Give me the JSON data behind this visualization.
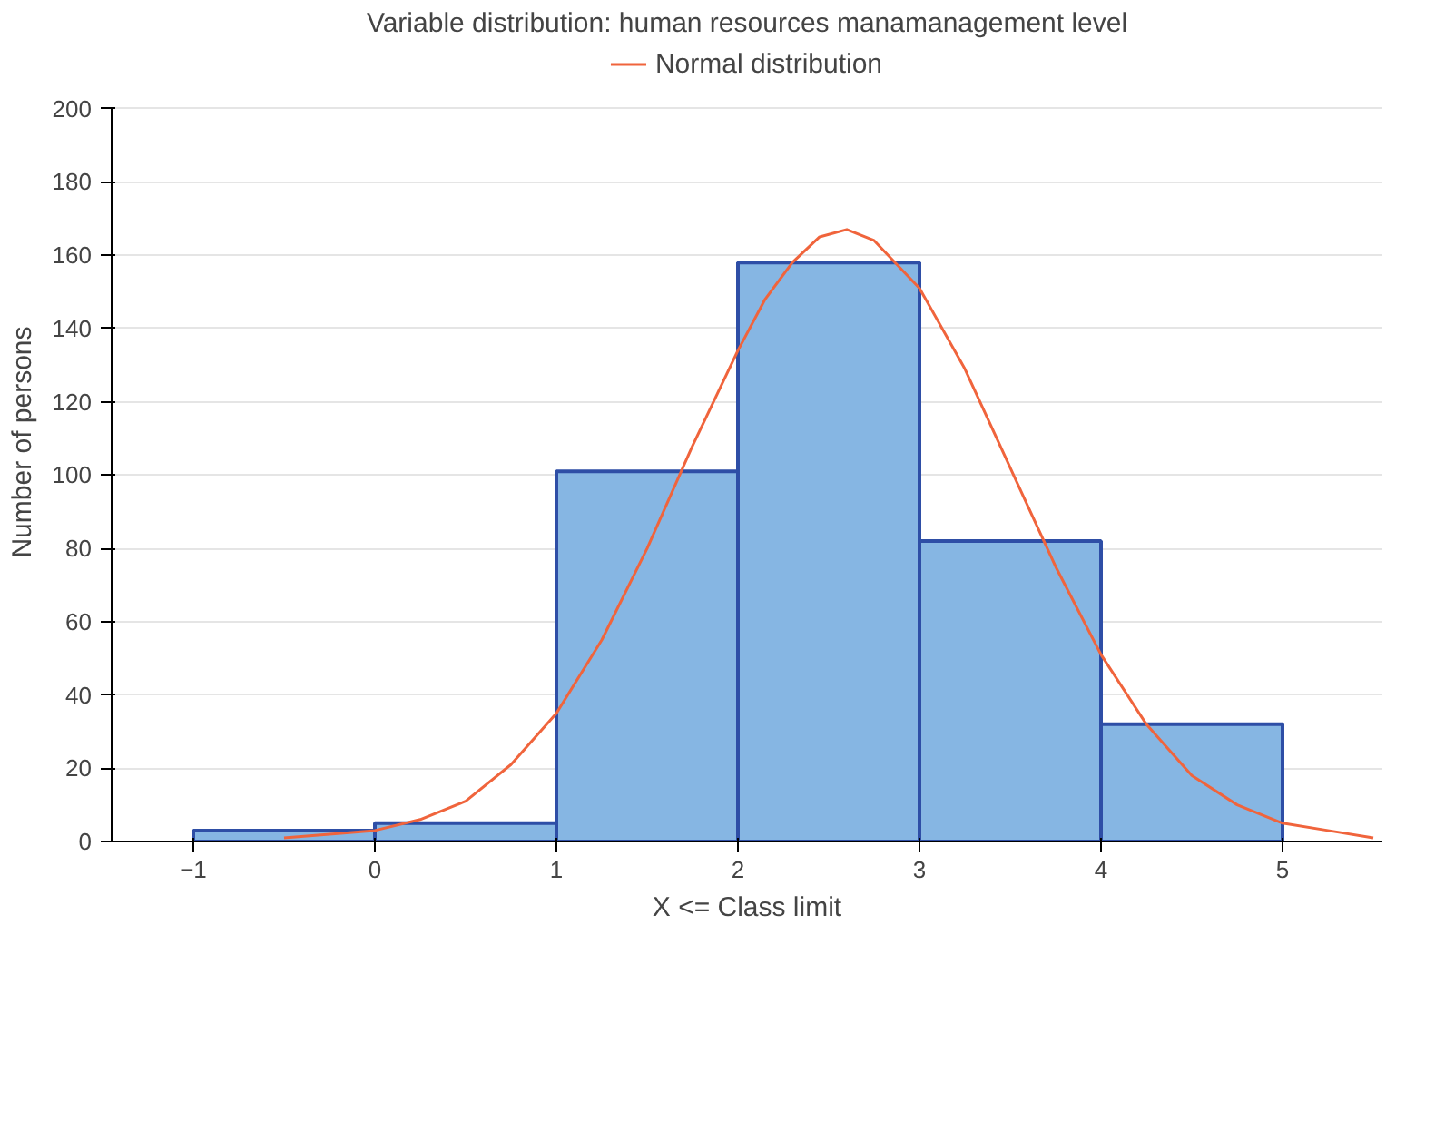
{
  "chart_data": {
    "type": "histogram",
    "title": "Variable distribution: human resources manamanagement level",
    "xlabel": "X <= Class limit",
    "ylabel": "Number of persons",
    "bins": [
      -1,
      0,
      1,
      2,
      3,
      4,
      5
    ],
    "values": [
      3,
      5,
      101,
      158,
      82,
      32
    ],
    "color": "#86b6e3",
    "series": [
      {
        "name": "Normal distribution",
        "type": "line",
        "color": "#f0643c",
        "x": [
          -0.5,
          0,
          0.25,
          0.5,
          0.75,
          1,
          1.25,
          1.5,
          1.75,
          2,
          2.15,
          2.3,
          2.45,
          2.6,
          2.75,
          3,
          3.25,
          3.5,
          3.75,
          4,
          4.25,
          4.5,
          4.75,
          5,
          5.25,
          5.5
        ],
        "values": [
          1,
          3,
          6,
          11,
          21,
          35,
          55,
          80,
          108,
          134,
          148,
          158,
          165,
          167,
          164,
          151,
          129,
          102,
          75,
          51,
          32,
          18,
          10,
          5,
          3,
          1
        ]
      }
    ],
    "xlim": [
      -1.45,
      5.55
    ],
    "xticks": [
      -1,
      0,
      1,
      2,
      3,
      4,
      5
    ],
    "ylim": [
      0,
      200
    ],
    "yticks": [
      0,
      20,
      40,
      60,
      80,
      100,
      120,
      140,
      160,
      180,
      200
    ],
    "grid": "y",
    "legend": "top"
  }
}
